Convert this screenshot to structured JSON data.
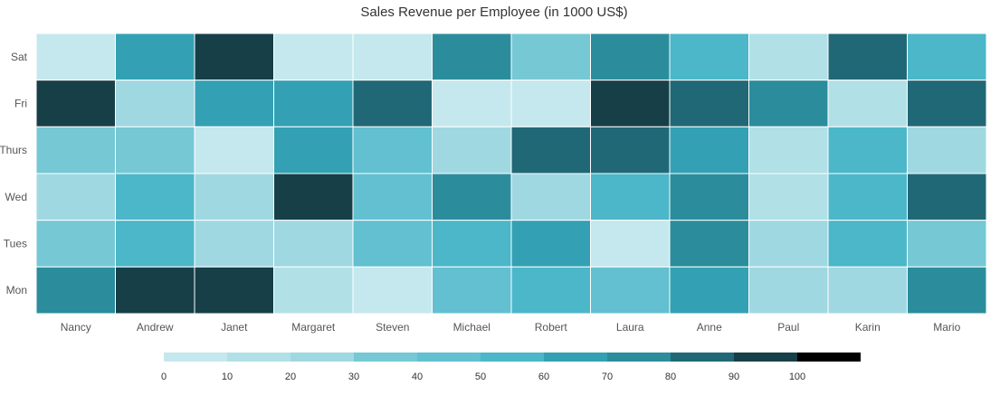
{
  "chart_data": {
    "type": "heatmap",
    "title": "Sales Revenue per Employee (in 1000 US$)",
    "x": [
      "Nancy",
      "Andrew",
      "Janet",
      "Margaret",
      "Steven",
      "Michael",
      "Robert",
      "Laura",
      "Anne",
      "Paul",
      "Karin",
      "Mario"
    ],
    "y": [
      "Sat",
      "Fri",
      "Thurs",
      "Wed",
      "Tues",
      "Mon"
    ],
    "values": [
      [
        5,
        65,
        95,
        5,
        5,
        75,
        35,
        75,
        55,
        15,
        85,
        55
      ],
      [
        95,
        25,
        65,
        65,
        85,
        5,
        5,
        95,
        85,
        75,
        15,
        85
      ],
      [
        35,
        35,
        5,
        65,
        45,
        25,
        85,
        85,
        65,
        15,
        55,
        25
      ],
      [
        25,
        55,
        25,
        95,
        45,
        75,
        25,
        55,
        75,
        15,
        55,
        85
      ],
      [
        35,
        55,
        25,
        25,
        45,
        55,
        65,
        5,
        75,
        25,
        55,
        35
      ],
      [
        75,
        95,
        95,
        15,
        5,
        45,
        55,
        45,
        65,
        25,
        25,
        75
      ]
    ],
    "legend": {
      "position": "bottom",
      "ticks": [
        "0",
        "10",
        "20",
        "30",
        "40",
        "50",
        "60",
        "70",
        "80",
        "90",
        "100"
      ],
      "colors": [
        "#c4e8ed",
        "#b1e0e7",
        "#a0d8e2",
        "#76c8d5",
        "#62c0d0",
        "#4bb7c8",
        "#33a1b3",
        "#2b8d9c",
        "#216876",
        "#173f48",
        "#000000"
      ]
    }
  }
}
